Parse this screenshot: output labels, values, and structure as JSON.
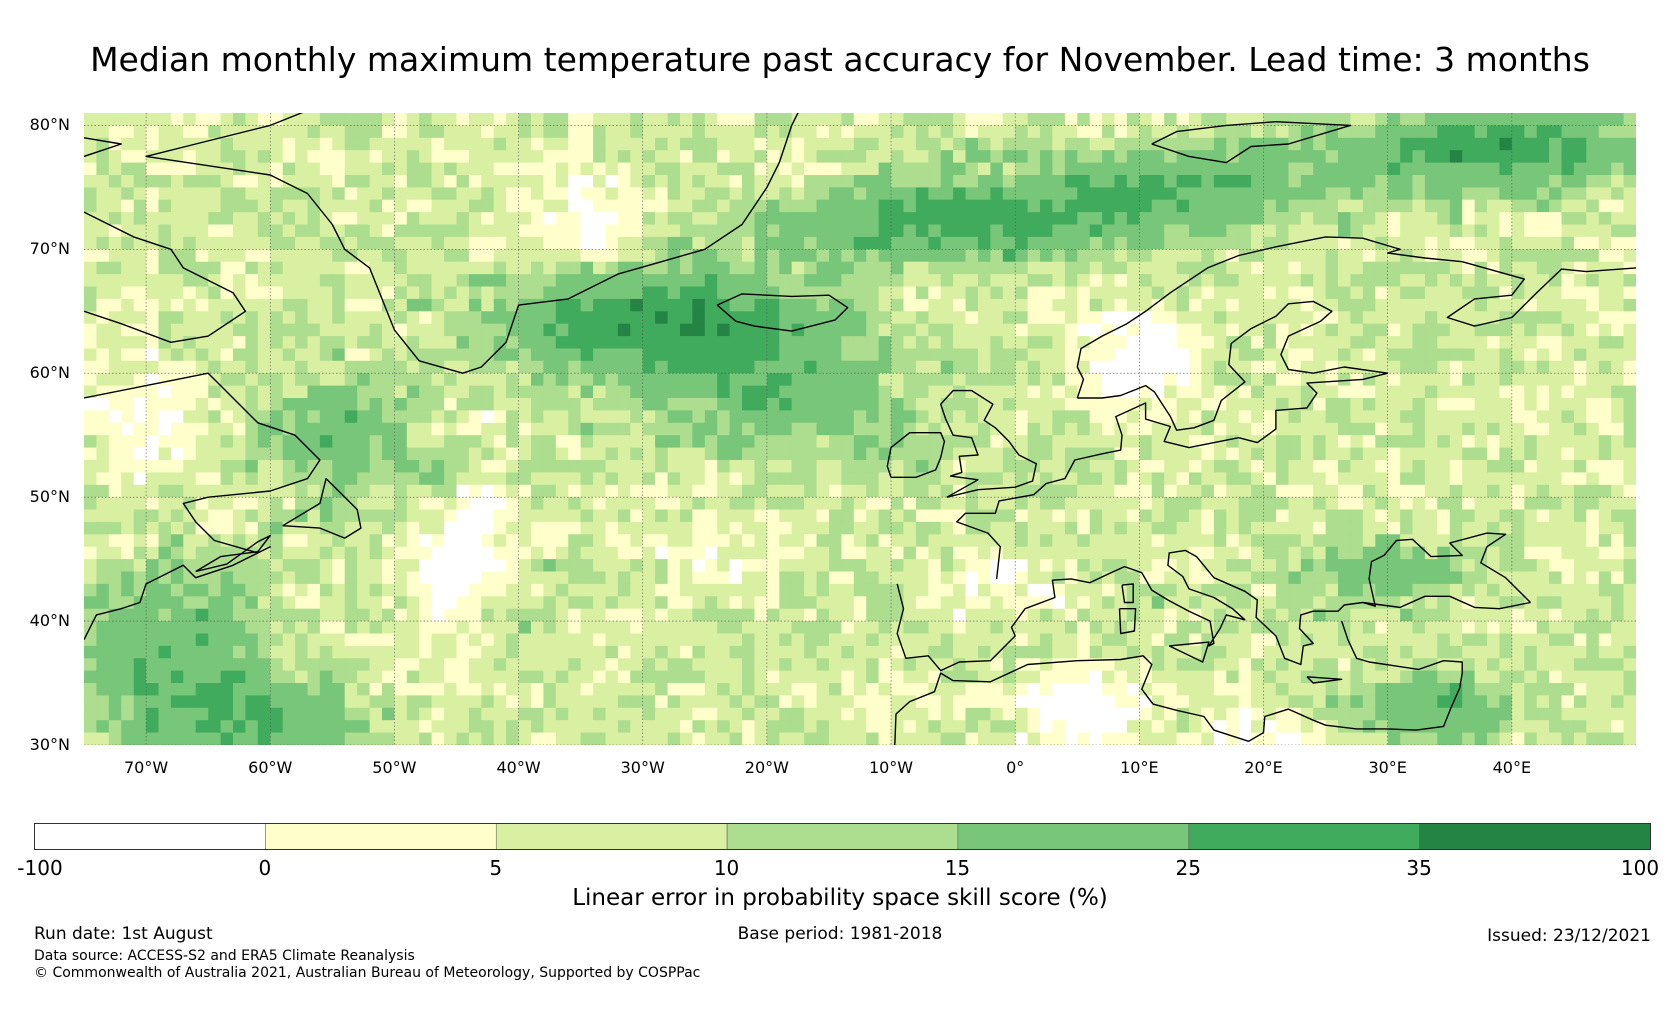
{
  "title": "Median monthly maximum temperature past accuracy for November. Lead time: 3 months",
  "map": {
    "lat_ticks": [
      "80°N",
      "70°N",
      "60°N",
      "50°N",
      "40°N",
      "30°N"
    ],
    "lat_values": [
      80,
      70,
      60,
      50,
      40,
      30
    ],
    "lon_ticks": [
      "70°W",
      "60°W",
      "50°W",
      "40°W",
      "30°W",
      "20°W",
      "10°W",
      "0°",
      "10°E",
      "20°E",
      "30°E",
      "40°E"
    ],
    "lon_values": [
      -70,
      -60,
      -50,
      -40,
      -30,
      -20,
      -10,
      0,
      10,
      20,
      30,
      40
    ],
    "lon_range": [
      -75,
      50
    ],
    "lat_range": [
      30,
      81
    ]
  },
  "legend": {
    "label": "Linear error in probability space skill score (%)",
    "bounds": [
      "-100",
      "0",
      "5",
      "10",
      "15",
      "25",
      "35",
      "100"
    ],
    "colors": [
      "#ffffff",
      "#ffffcc",
      "#d9f0a3",
      "#addd8e",
      "#78c679",
      "#41ab5d",
      "#238443"
    ]
  },
  "footer": {
    "run_date": "Run date: 1st August",
    "base_period": "Base period: 1981-2018",
    "issued": "Issued: 23/12/2021",
    "data_source": "Data source: ACCESS-S2 and ERA5 Climate Reanalysis",
    "copyright": "© Commonwealth of Australia 2021, Australian Bureau of Meteorology, Supported by COSPPac"
  }
}
